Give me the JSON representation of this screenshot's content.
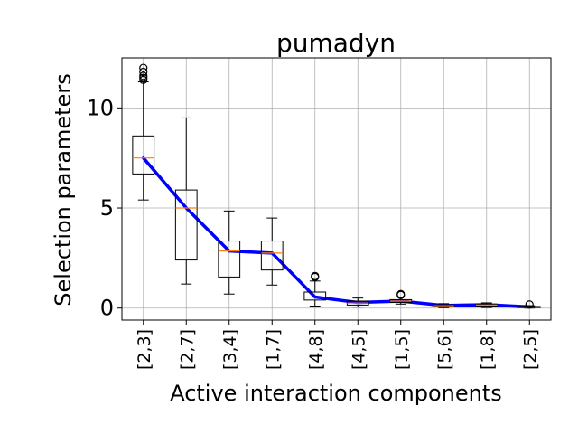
{
  "chart_data": {
    "type": "box",
    "title": "pumadyn",
    "xlabel": "Active interaction components",
    "ylabel": "Selection parameters",
    "ylim": [
      -0.6,
      12.5
    ],
    "yticks": [
      0,
      5,
      10
    ],
    "grid": true,
    "categories": [
      "[2,3]",
      "[2,7]",
      "[3,4]",
      "[1,7]",
      "[4,8]",
      "[4,5]",
      "[1,5]",
      "[5,6]",
      "[1,8]",
      "[2,5]"
    ],
    "boxes": [
      {
        "whislo": 5.4,
        "q1": 6.7,
        "med": 7.5,
        "q3": 8.6,
        "whishi": 11.3,
        "fliers": [
          11.4,
          11.5,
          11.6,
          11.8,
          12.0
        ]
      },
      {
        "whislo": 1.2,
        "q1": 2.4,
        "med": 5.0,
        "q3": 5.9,
        "whishi": 9.5,
        "fliers": []
      },
      {
        "whislo": 0.7,
        "q1": 1.55,
        "med": 2.85,
        "q3": 3.35,
        "whishi": 4.85,
        "fliers": []
      },
      {
        "whislo": 1.15,
        "q1": 1.9,
        "med": 2.75,
        "q3": 3.35,
        "whishi": 4.5,
        "fliers": []
      },
      {
        "whislo": 0.1,
        "q1": 0.4,
        "med": 0.55,
        "q3": 0.8,
        "whishi": 1.35,
        "fliers": [
          1.55,
          1.6
        ]
      },
      {
        "whislo": 0.05,
        "q1": 0.15,
        "med": 0.25,
        "q3": 0.35,
        "whishi": 0.5,
        "fliers": []
      },
      {
        "whislo": 0.2,
        "q1": 0.28,
        "med": 0.35,
        "q3": 0.42,
        "whishi": 0.55,
        "fliers": [
          0.65,
          0.7
        ]
      },
      {
        "whislo": 0.02,
        "q1": 0.08,
        "med": 0.12,
        "q3": 0.16,
        "whishi": 0.22,
        "fliers": []
      },
      {
        "whislo": 0.03,
        "q1": 0.1,
        "med": 0.15,
        "q3": 0.2,
        "whishi": 0.26,
        "fliers": []
      },
      {
        "whislo": 0.0,
        "q1": 0.02,
        "med": 0.05,
        "q3": 0.08,
        "whishi": 0.12,
        "fliers": [
          0.18
        ]
      }
    ],
    "mean_line": {
      "color": "#0000ff",
      "values": [
        7.5,
        5.0,
        2.85,
        2.75,
        0.55,
        0.28,
        0.35,
        0.13,
        0.17,
        0.06
      ]
    },
    "colors": {
      "box": "#000000",
      "median": "#ff7f0e",
      "grid": "#b0b0b0"
    }
  }
}
